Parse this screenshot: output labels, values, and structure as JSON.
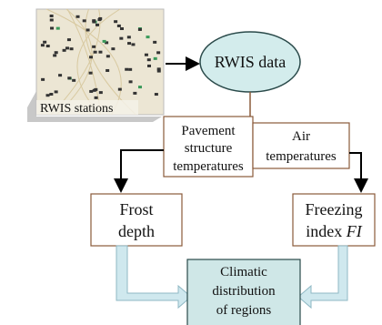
{
  "map": {
    "label": "RWIS stations"
  },
  "nodes": {
    "rwis_data": {
      "label": "RWIS data"
    },
    "pavement": {
      "lines": [
        "Pavement",
        "structure",
        "temperatures"
      ]
    },
    "air": {
      "lines": [
        "Air",
        "temperatures"
      ]
    },
    "frost": {
      "lines": [
        "Frost",
        "depth"
      ]
    },
    "freezing": {
      "lines": [
        "Freezing",
        "index"
      ],
      "italic": "FI"
    },
    "climatic": {
      "lines": [
        "Climatic",
        "distribution",
        "of regions"
      ]
    }
  }
}
